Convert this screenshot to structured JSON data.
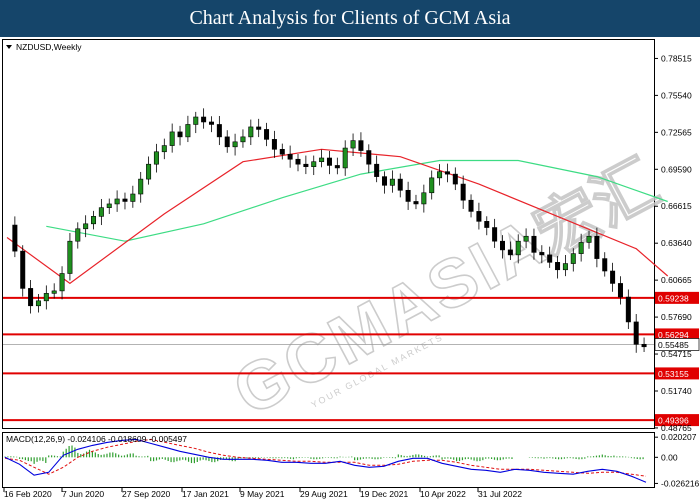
{
  "header": {
    "title": "Chart Analysis for Clients of GCM Asia"
  },
  "watermark": {
    "brand": "GCMASIA",
    "cjk": "宏汇",
    "sub": "YOUR GLOBAL MARKETS"
  },
  "colors": {
    "header_bg": "#15456a",
    "bull": "#1f8f1f",
    "ma_red": "#e8232a",
    "ma_green": "#3ddc84",
    "level_red": "#e00000",
    "macd_line": "#0000dd",
    "signal_line": "#e01010",
    "hist": "#2e9e2e"
  },
  "chart_data": [
    {
      "type": "candlestick",
      "title": "NZDUSD,Weekly",
      "x_ticks": [
        "16 Feb 2020",
        "7 Jun 2020",
        "27 Sep 2020",
        "17 Jan 2021",
        "9 May 2021",
        "29 Aug 2021",
        "19 Dec 2021",
        "10 Apr 2022",
        "31 Jul 2022"
      ],
      "price_axis": [
        "0.78515",
        "0.75540",
        "0.72565",
        "0.69590",
        "0.66615",
        "0.63640",
        "0.60665",
        "0.57690",
        "0.54715",
        "0.51740",
        "0.48765"
      ],
      "ylim": [
        0.4876,
        0.8
      ],
      "close_path": [
        0.651,
        0.63,
        0.6,
        0.586,
        0.59,
        0.596,
        0.598,
        0.612,
        0.638,
        0.648,
        0.652,
        0.658,
        0.665,
        0.668,
        0.672,
        0.67,
        0.676,
        0.688,
        0.7,
        0.71,
        0.715,
        0.726,
        0.722,
        0.732,
        0.738,
        0.734,
        0.732,
        0.722,
        0.714,
        0.718,
        0.722,
        0.73,
        0.728,
        0.72,
        0.712,
        0.708,
        0.704,
        0.7,
        0.698,
        0.702,
        0.705,
        0.699,
        0.697,
        0.713,
        0.719,
        0.711,
        0.7,
        0.69,
        0.683,
        0.688,
        0.679,
        0.67,
        0.668,
        0.677,
        0.689,
        0.694,
        0.692,
        0.684,
        0.671,
        0.662,
        0.654,
        0.649,
        0.638,
        0.631,
        0.627,
        0.638,
        0.642,
        0.629,
        0.627,
        0.621,
        0.615,
        0.62,
        0.628,
        0.637,
        0.642,
        0.624,
        0.614,
        0.604,
        0.593,
        0.573,
        0.555,
        0.553
      ],
      "ma_red": [
        [
          0,
          0.641
        ],
        [
          8,
          0.604
        ],
        [
          20,
          0.66
        ],
        [
          30,
          0.702
        ],
        [
          40,
          0.712
        ],
        [
          50,
          0.706
        ],
        [
          60,
          0.684
        ],
        [
          70,
          0.658
        ],
        [
          80,
          0.632
        ],
        [
          84,
          0.61
        ]
      ],
      "ma_green": [
        [
          5,
          0.65
        ],
        [
          15,
          0.638
        ],
        [
          25,
          0.652
        ],
        [
          35,
          0.673
        ],
        [
          45,
          0.692
        ],
        [
          55,
          0.703
        ],
        [
          65,
          0.703
        ],
        [
          75,
          0.69
        ],
        [
          84,
          0.67
        ]
      ],
      "levels": [
        {
          "value": 0.59238,
          "label": "0.59238"
        },
        {
          "value": 0.56294,
          "label": "0.56294"
        },
        {
          "value": 0.53155,
          "label": "0.53155"
        },
        {
          "value": 0.49396,
          "label": "0.49396"
        }
      ],
      "current_price": "0.55485",
      "current_value": 0.55485
    },
    {
      "type": "macd",
      "title": "MACD(12,26,9) -0.024106 -0.018609 -0.005497",
      "y_ticks": [
        "0.020207",
        "0.00",
        "-0.026216"
      ],
      "ylim": [
        -0.0298,
        0.0244
      ],
      "macd": [
        [
          0,
          0.0
        ],
        [
          5,
          -0.007
        ],
        [
          10,
          -0.018
        ],
        [
          15,
          -0.015
        ],
        [
          20,
          0.002
        ],
        [
          25,
          0.008
        ],
        [
          30,
          0.012
        ],
        [
          35,
          0.015
        ],
        [
          40,
          0.017
        ],
        [
          45,
          0.018
        ],
        [
          50,
          0.014
        ],
        [
          55,
          0.01
        ],
        [
          60,
          0.006
        ],
        [
          65,
          0.003
        ],
        [
          70,
          0.0
        ],
        [
          75,
          -0.002
        ],
        [
          80,
          -0.002
        ],
        [
          85,
          -0.002
        ],
        [
          90,
          -0.003
        ],
        [
          95,
          -0.005
        ],
        [
          100,
          -0.005
        ],
        [
          105,
          -0.006
        ],
        [
          110,
          -0.006
        ],
        [
          115,
          -0.004
        ],
        [
          120,
          -0.008
        ],
        [
          125,
          -0.01
        ],
        [
          130,
          -0.009
        ],
        [
          135,
          -0.004
        ],
        [
          140,
          -0.001
        ],
        [
          145,
          -0.001
        ],
        [
          150,
          -0.006
        ],
        [
          155,
          -0.009
        ],
        [
          160,
          -0.012
        ],
        [
          165,
          -0.013
        ],
        [
          170,
          -0.015
        ],
        [
          175,
          -0.012
        ],
        [
          180,
          -0.013
        ],
        [
          185,
          -0.015
        ],
        [
          190,
          -0.016
        ],
        [
          195,
          -0.017
        ],
        [
          200,
          -0.014
        ],
        [
          205,
          -0.012
        ],
        [
          210,
          -0.014
        ],
        [
          215,
          -0.019
        ],
        [
          220,
          -0.025
        ]
      ],
      "signal": [
        [
          0,
          -0.001
        ],
        [
          5,
          -0.003
        ],
        [
          10,
          -0.01
        ],
        [
          15,
          -0.017
        ],
        [
          20,
          -0.01
        ],
        [
          25,
          0.0
        ],
        [
          30,
          0.006
        ],
        [
          35,
          0.01
        ],
        [
          40,
          0.013
        ],
        [
          45,
          0.016
        ],
        [
          50,
          0.018
        ],
        [
          55,
          0.015
        ],
        [
          60,
          0.012
        ],
        [
          65,
          0.009
        ],
        [
          70,
          0.005
        ],
        [
          75,
          0.002
        ],
        [
          80,
          0.0
        ],
        [
          85,
          -0.001
        ],
        [
          90,
          -0.002
        ],
        [
          95,
          -0.003
        ],
        [
          100,
          -0.004
        ],
        [
          105,
          -0.004
        ],
        [
          110,
          -0.005
        ],
        [
          115,
          -0.005
        ],
        [
          120,
          -0.005
        ],
        [
          125,
          -0.008
        ],
        [
          130,
          -0.008
        ],
        [
          135,
          -0.007
        ],
        [
          140,
          -0.004
        ],
        [
          145,
          -0.003
        ],
        [
          150,
          -0.003
        ],
        [
          155,
          -0.005
        ],
        [
          160,
          -0.008
        ],
        [
          165,
          -0.01
        ],
        [
          170,
          -0.012
        ],
        [
          175,
          -0.012
        ],
        [
          180,
          -0.012
        ],
        [
          185,
          -0.013
        ],
        [
          190,
          -0.014
        ],
        [
          195,
          -0.015
        ],
        [
          200,
          -0.016
        ],
        [
          205,
          -0.015
        ],
        [
          210,
          -0.015
        ],
        [
          215,
          -0.017
        ],
        [
          220,
          -0.019
        ]
      ]
    }
  ]
}
